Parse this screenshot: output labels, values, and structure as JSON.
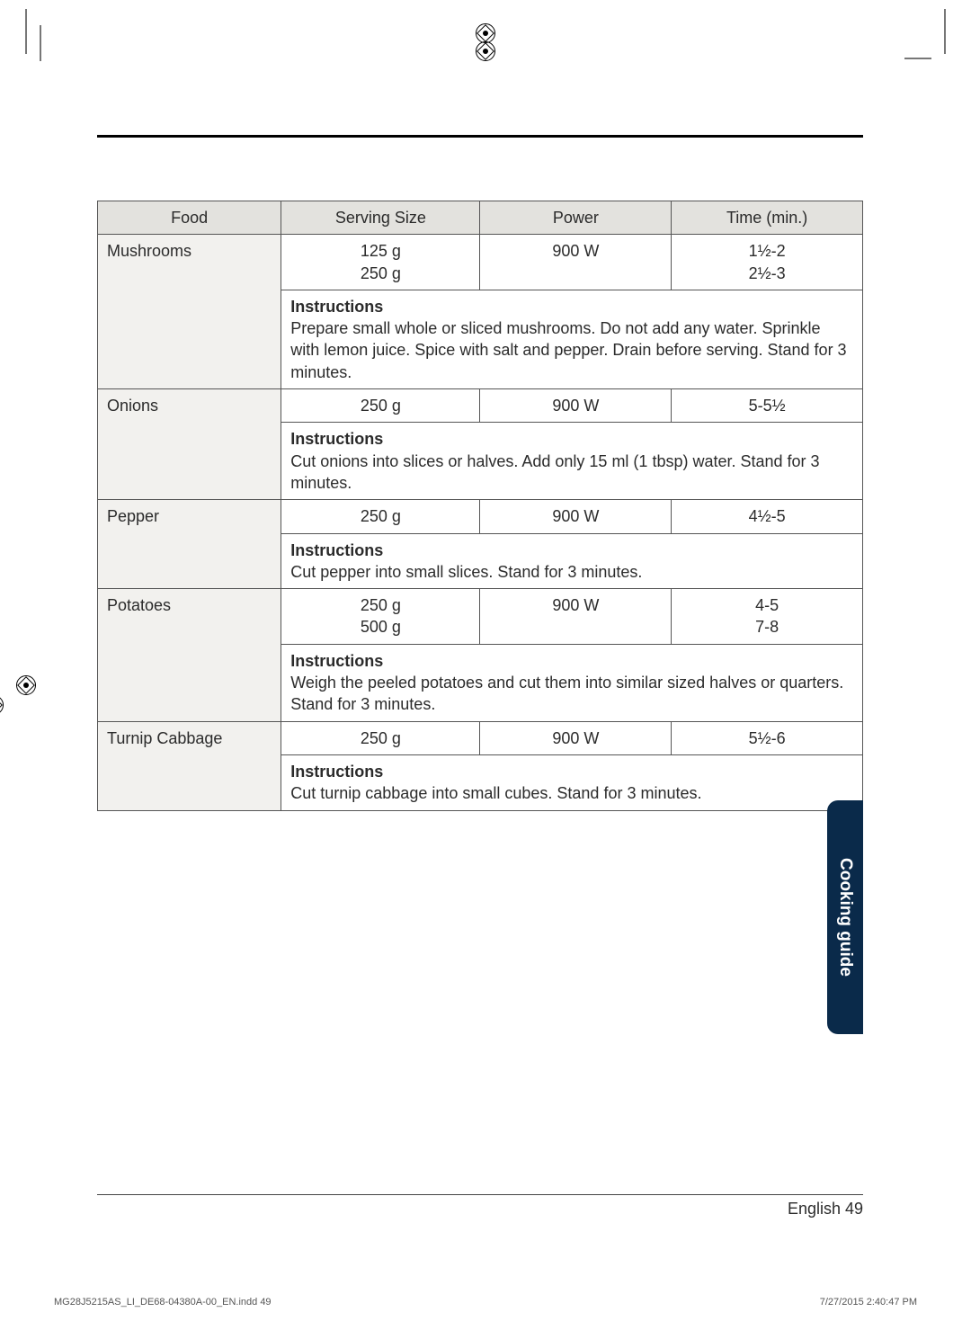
{
  "page": {
    "side_tab": "Cooking guide",
    "footer": "English 49",
    "print_left": "MG28J5215AS_LI_DE68-04380A-00_EN.indd   49",
    "print_right": "7/27/2015   2:40:47 PM"
  },
  "table": {
    "headers": {
      "food": "Food",
      "serving": "Serving Size",
      "power": "Power",
      "time": "Time (min.)"
    },
    "rows": [
      {
        "food": "Mushrooms",
        "serving": "125 g\n250 g",
        "power": "900 W",
        "time": "1½-2\n2½-3",
        "instr_label": "Instructions",
        "instr": "Prepare small whole or sliced mushrooms. Do not add any water. Sprinkle with lemon juice. Spice with salt and pepper. Drain before serving. Stand for 3 minutes."
      },
      {
        "food": "Onions",
        "serving": "250 g",
        "power": "900 W",
        "time": "5-5½",
        "instr_label": "Instructions",
        "instr": "Cut onions into slices or halves. Add only 15 ml (1 tbsp) water. Stand for 3 minutes."
      },
      {
        "food": "Pepper",
        "serving": "250 g",
        "power": "900 W",
        "time": "4½-5",
        "instr_label": "Instructions",
        "instr": "Cut pepper into small slices. Stand for 3 minutes."
      },
      {
        "food": "Potatoes",
        "serving": "250 g\n500 g",
        "power": "900 W",
        "time": "4-5\n7-8",
        "instr_label": "Instructions",
        "instr": "Weigh the peeled potatoes and cut them into similar sized halves or quarters. Stand for 3 minutes."
      },
      {
        "food": "Turnip Cabbage",
        "serving": "250 g",
        "power": "900 W",
        "time": "5½-6",
        "instr_label": "Instructions",
        "instr": "Cut turnip cabbage into small cubes. Stand for 3 minutes."
      }
    ]
  },
  "colors": {
    "header_bg": "#e3e2de",
    "food_bg": "#f2f1ee",
    "tab_bg": "#0a2a4a",
    "text": "#2b2b2b",
    "border": "#555555"
  }
}
